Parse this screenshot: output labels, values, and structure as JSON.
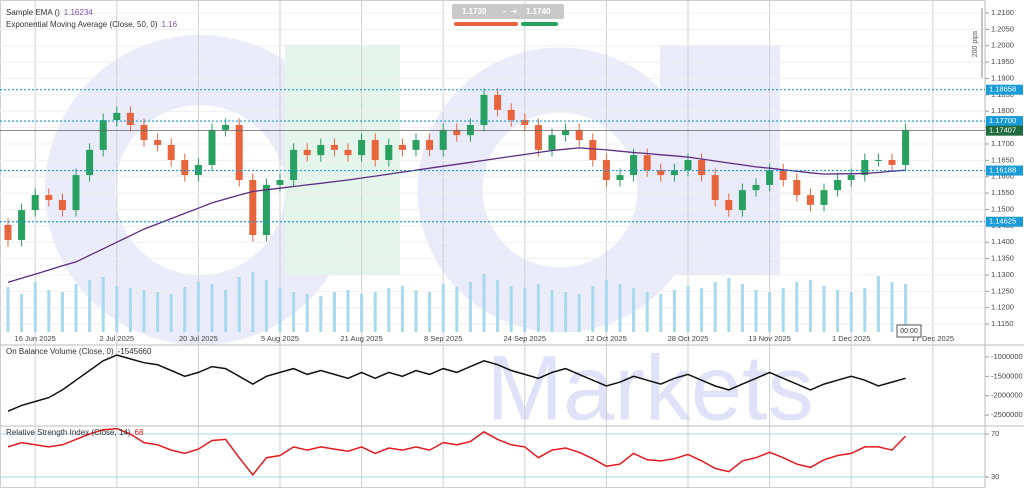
{
  "chart_data": [
    {
      "type": "candlestick",
      "study": {
        "name": "Sample EMA ()",
        "value": 1.16234
      },
      "categories": [
        null,
        null,
        "16 Jun 2025",
        null,
        null,
        null,
        null,
        null,
        "2 Jul 2025",
        null,
        null,
        null,
        null,
        null,
        "20 Jul 2025",
        null,
        null,
        null,
        null,
        null,
        "5 Aug 2025",
        null,
        null,
        null,
        null,
        null,
        "21 Aug 2025",
        null,
        null,
        null,
        null,
        null,
        "8 Sep 2025",
        null,
        null,
        null,
        null,
        null,
        "24 Sep 2025",
        null,
        null,
        null,
        null,
        null,
        "12 Oct 2025",
        null,
        null,
        null,
        null,
        null,
        "28 Oct 2025",
        null,
        null,
        null,
        null,
        null,
        "13 Nov 2025",
        null,
        null,
        null,
        null,
        null,
        "1 Dec 2025",
        null,
        null,
        null,
        null,
        null,
        "17 Dec 2025",
        null
      ],
      "open": [
        1.1453,
        1.1407,
        1.1498,
        1.1544,
        1.1529,
        1.1498,
        1.1605,
        1.1682,
        1.1773,
        1.1795,
        1.1758,
        1.1712,
        1.1697,
        1.1651,
        1.1605,
        1.1636,
        1.1743,
        1.1758,
        1.159,
        1.1422,
        1.1575,
        1.159,
        1.1682,
        1.1666,
        1.1697,
        1.1682,
        1.1666,
        1.1712,
        1.1651,
        1.1697,
        1.1682,
        1.1712,
        1.1682,
        1.1743,
        1.1727,
        1.1758,
        1.185,
        1.1804,
        1.1773,
        1.1758,
        1.1682,
        1.1727,
        1.1743,
        1.1712,
        1.1651,
        1.159,
        1.1605,
        1.1666,
        1.162,
        1.1605,
        1.162,
        1.1651,
        1.1605,
        1.1529,
        1.1498,
        1.1559,
        1.1575,
        1.162,
        1.159,
        1.1544,
        1.1514,
        1.1559,
        1.159,
        1.1605,
        1.1651,
        1.1651,
        1.1636,
        null,
        null,
        null
      ],
      "high": [
        1.1473,
        1.1518,
        1.1564,
        1.1564,
        1.1549,
        1.1625,
        1.1702,
        1.1793,
        1.1815,
        1.1815,
        1.1778,
        1.1732,
        1.1717,
        1.1671,
        1.1656,
        1.1763,
        1.1778,
        1.1778,
        1.161,
        1.1595,
        1.161,
        1.1702,
        1.1702,
        1.1717,
        1.1717,
        1.1702,
        1.1732,
        1.1732,
        1.1717,
        1.1717,
        1.1732,
        1.1732,
        1.1763,
        1.1763,
        1.1778,
        1.187,
        1.187,
        1.1824,
        1.1793,
        1.1778,
        1.1747,
        1.1763,
        1.1763,
        1.1732,
        1.1671,
        1.1625,
        1.1686,
        1.1686,
        1.164,
        1.164,
        1.1671,
        1.1671,
        1.1625,
        1.1549,
        1.1579,
        1.1595,
        1.164,
        1.164,
        1.161,
        1.1564,
        1.1579,
        1.161,
        1.1625,
        1.1671,
        1.1671,
        1.1671,
        1.1763,
        null,
        null,
        null
      ],
      "low": [
        1.1387,
        1.1387,
        1.1478,
        1.1509,
        1.1478,
        1.1478,
        1.1585,
        1.1662,
        1.1753,
        1.1738,
        1.1692,
        1.1677,
        1.1631,
        1.1585,
        1.1585,
        1.1616,
        1.1723,
        1.157,
        1.1402,
        1.1402,
        1.1555,
        1.157,
        1.1646,
        1.1646,
        1.1662,
        1.1646,
        1.1646,
        1.1631,
        1.1631,
        1.1662,
        1.1662,
        1.1662,
        1.1662,
        1.1707,
        1.1707,
        1.1738,
        1.1784,
        1.1753,
        1.1738,
        1.1662,
        1.1662,
        1.1707,
        1.1692,
        1.1631,
        1.157,
        1.157,
        1.1585,
        1.16,
        1.1585,
        1.1585,
        1.16,
        1.1585,
        1.1509,
        1.1478,
        1.1478,
        1.1539,
        1.1555,
        1.157,
        1.1524,
        1.1494,
        1.1494,
        1.1539,
        1.157,
        1.1585,
        1.1631,
        1.1616,
        1.1616,
        null,
        null,
        null
      ],
      "close": [
        1.1407,
        1.1498,
        1.1544,
        1.1529,
        1.1498,
        1.1605,
        1.1682,
        1.1773,
        1.1795,
        1.1758,
        1.1712,
        1.1697,
        1.1651,
        1.1605,
        1.1636,
        1.1743,
        1.1758,
        1.159,
        1.1422,
        1.1575,
        1.159,
        1.1682,
        1.1666,
        1.1697,
        1.1682,
        1.1666,
        1.1712,
        1.1651,
        1.1697,
        1.1682,
        1.1712,
        1.1682,
        1.1743,
        1.1727,
        1.1758,
        1.185,
        1.1804,
        1.1773,
        1.1758,
        1.1682,
        1.1727,
        1.1743,
        1.1712,
        1.1651,
        1.159,
        1.1605,
        1.1666,
        1.162,
        1.1605,
        1.162,
        1.1651,
        1.1605,
        1.1529,
        1.1498,
        1.1559,
        1.1575,
        1.162,
        1.159,
        1.1544,
        1.1514,
        1.1559,
        1.159,
        1.1605,
        1.1651,
        1.1651,
        1.1636,
        1.1743,
        null,
        null,
        null
      ],
      "up_color": "#27a060",
      "down_color": "#e8643c",
      "volume": {
        "color": "#a9d9ef",
        "values": [
          45,
          38,
          50,
          42,
          40,
          48,
          52,
          55,
          46,
          44,
          42,
          40,
          38,
          45,
          50,
          48,
          42,
          55,
          60,
          52,
          44,
          40,
          38,
          36,
          40,
          42,
          38,
          40,
          44,
          46,
          42,
          40,
          48,
          45,
          50,
          58,
          52,
          46,
          44,
          48,
          42,
          40,
          38,
          46,
          52,
          48,
          44,
          40,
          38,
          42,
          46,
          44,
          50,
          54,
          48,
          42,
          40,
          44,
          50,
          52,
          46,
          42,
          40,
          44,
          56,
          50,
          48,
          null,
          null,
          null
        ]
      },
      "series": [
        {
          "name": "Exponential Moving Average (Close, 50, 0)",
          "color": "#5b2c83",
          "legend_value": 1.16,
          "values": [
            1.1278,
            1.129,
            1.1302,
            1.1315,
            1.1328,
            1.134,
            1.136,
            1.138,
            1.14,
            1.142,
            1.144,
            1.1456,
            1.1472,
            1.1488,
            1.1504,
            1.152,
            1.1532,
            1.1544,
            1.1555,
            1.156,
            1.1565,
            1.157,
            1.1575,
            1.158,
            1.1585,
            1.159,
            1.1596,
            1.1602,
            1.1608,
            1.1614,
            1.162,
            1.1626,
            1.1632,
            1.1638,
            1.1644,
            1.165,
            1.1656,
            1.1662,
            1.1668,
            1.1674,
            1.168,
            1.1684,
            1.1688,
            1.1685,
            1.1682,
            1.1678,
            1.1674,
            1.1671,
            1.1667,
            1.1664,
            1.166,
            1.1654,
            1.1648,
            1.1642,
            1.1636,
            1.163,
            1.1626,
            1.1621,
            1.1617,
            1.1612,
            1.1608,
            1.1609,
            1.1609,
            1.161,
            1.1613,
            1.1617,
            1.162,
            null,
            null,
            null
          ]
        }
      ],
      "ylim": [
        1.11258,
        1.21397
      ],
      "yticks": [
        {
          "value": 1.115,
          "label": "1.1150"
        },
        {
          "value": 1.12,
          "label": "1.1200"
        },
        {
          "value": 1.125,
          "label": "1.1250"
        },
        {
          "value": 1.13,
          "label": "1.1300"
        },
        {
          "value": 1.135,
          "label": "1.1350"
        },
        {
          "value": 1.14,
          "label": "1.1400"
        },
        {
          "value": 1.145,
          "label": "1.1450"
        },
        {
          "value": 1.15,
          "label": "1.1500"
        },
        {
          "value": 1.155,
          "label": "1.1550"
        },
        {
          "value": 1.16,
          "label": "1.1600"
        },
        {
          "value": 1.165,
          "label": "1.1650"
        },
        {
          "value": 1.17,
          "label": "1.1700"
        },
        {
          "value": 1.175,
          "label": "1.1750"
        },
        {
          "value": 1.18,
          "label": "1.1800"
        },
        {
          "value": 1.185,
          "label": "1.1850"
        },
        {
          "value": 1.19,
          "label": "1.1900"
        },
        {
          "value": 1.195,
          "label": "1.1950"
        },
        {
          "value": 1.2,
          "label": "1.2000"
        },
        {
          "value": 1.205,
          "label": "1.2050"
        },
        {
          "value": 1.21,
          "label": "1.2100"
        }
      ],
      "grid": true,
      "price_lines": [
        1.18658,
        {
          "value": 1.177,
          "label": "1.17700"
        },
        1.16188,
        1.14625
      ],
      "price_line_color": "#1a9bd7",
      "last_price": 1.17407,
      "last_price_color": "#1f6b3c"
    },
    {
      "type": "line",
      "title": "On Balance Volume (Close, 0)",
      "legend_value": -1545660,
      "color": "#111111",
      "values": [
        -2400000,
        -2250000,
        -2150000,
        -2050000,
        -1850000,
        -1600000,
        -1350000,
        -1100000,
        -950000,
        -1050000,
        -1150000,
        -1200000,
        -1350000,
        -1500000,
        -1400000,
        -1250000,
        -1300000,
        -1500000,
        -1700000,
        -1500000,
        -1400000,
        -1300000,
        -1450000,
        -1350000,
        -1450000,
        -1550000,
        -1400000,
        -1550000,
        -1400000,
        -1500000,
        -1350000,
        -1450000,
        -1300000,
        -1400000,
        -1250000,
        -1100000,
        -1200000,
        -1350000,
        -1450000,
        -1550000,
        -1400000,
        -1300000,
        -1450000,
        -1600000,
        -1750000,
        -1650000,
        -1500000,
        -1600000,
        -1700000,
        -1550000,
        -1450000,
        -1600000,
        -1750000,
        -1850000,
        -1700000,
        -1550000,
        -1400000,
        -1550000,
        -1700000,
        -1850000,
        -1700000,
        -1600000,
        -1500000,
        -1600000,
        -1750000,
        -1650000,
        -1550000,
        null,
        null,
        null
      ],
      "ylim": [
        -2756000,
        -718000
      ],
      "yticks": [
        -1000000,
        -1500000,
        -2000000,
        -2500000
      ]
    },
    {
      "type": "line",
      "title": "Relative Strength Index (Close, 14)",
      "legend_value": 68,
      "color": "#e41a1c",
      "values": [
        58,
        62,
        60,
        58,
        60,
        65,
        70,
        74,
        75,
        70,
        62,
        60,
        55,
        52,
        56,
        64,
        65,
        48,
        32,
        48,
        50,
        58,
        55,
        58,
        56,
        54,
        58,
        52,
        57,
        55,
        58,
        55,
        62,
        60,
        63,
        72,
        65,
        60,
        58,
        48,
        55,
        57,
        53,
        47,
        40,
        42,
        52,
        46,
        45,
        47,
        51,
        45,
        38,
        35,
        45,
        48,
        53,
        48,
        42,
        39,
        46,
        50,
        52,
        58,
        58,
        55,
        68,
        null,
        null,
        null
      ],
      "ylim": [
        22.6,
        76.5
      ],
      "yticks": [
        70,
        30
      ],
      "grid": true
    }
  ],
  "trade": {
    "sell": "1.1739",
    "buy": "1.1740"
  },
  "scale_note": "200 pips",
  "time_tag": "00:00",
  "watermark": "Markets"
}
